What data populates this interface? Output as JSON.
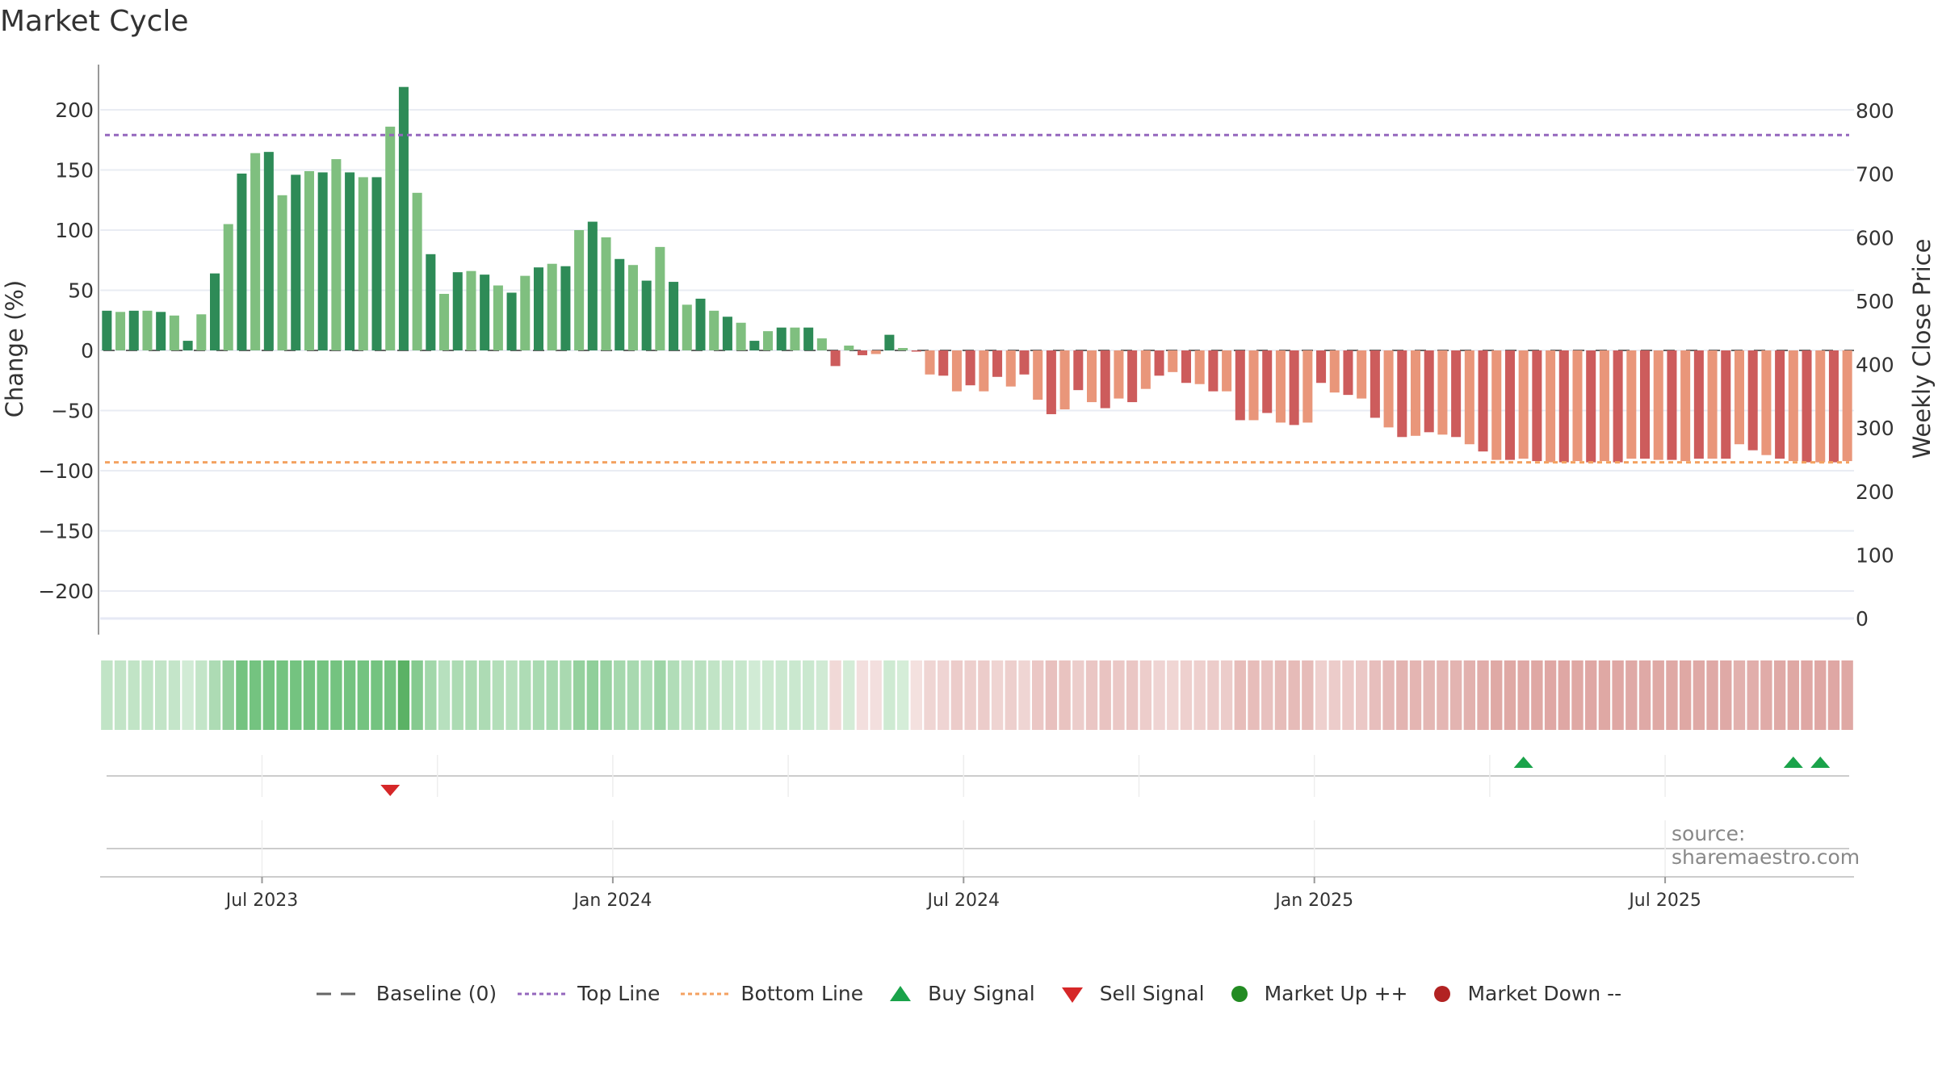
{
  "title": "Market Cycle",
  "source": "source: sharemaestro.com",
  "legend": {
    "baseline": "Baseline (0)",
    "top": "Top Line",
    "bottom": "Bottom Line",
    "buy": "Buy Signal",
    "sell": "Sell Signal",
    "up": "Market Up ++",
    "down": "Market Down --"
  },
  "colors": {
    "bar_dark_green": "#2e8b57",
    "bar_light_green": "#7fbf7f",
    "bar_dark_red": "#cd5c5c",
    "bar_light_red": "#e9967a",
    "top_line": "#9467bd",
    "bottom_line": "#f4a261",
    "buy": "#1aa34a",
    "sell": "#d62728",
    "market_up": "#228b22",
    "market_down": "#b22222"
  },
  "chart_data": {
    "type": "bar",
    "title": "Market Cycle",
    "ylabel": "Change (%)",
    "ylabel_right": "Weekly Close Price",
    "ylim": [
      -225,
      240
    ],
    "ylim_right": [
      0,
      850
    ],
    "yticks": [
      200,
      150,
      100,
      50,
      0,
      -50,
      -100,
      -150,
      -200
    ],
    "yticks_right": [
      800,
      700,
      600,
      500,
      400,
      300,
      200,
      100,
      0
    ],
    "ytick_labels": [
      "200",
      "150",
      "100",
      "50",
      "0",
      "−50",
      "−100",
      "−150",
      "−200"
    ],
    "yticks_right_labels": [
      "800",
      "700",
      "600",
      "500",
      "400",
      "300",
      "200",
      "100",
      "0"
    ],
    "xticks": [
      {
        "label": "Jul 2023",
        "week": 12
      },
      {
        "label": "Jan 2024",
        "week": 38
      },
      {
        "label": "Jul 2024",
        "week": 64
      },
      {
        "label": "Jan 2025",
        "week": 90
      },
      {
        "label": "Jul 2025",
        "week": 116
      }
    ],
    "top_line": 179,
    "bottom_line": -93,
    "baseline": 0,
    "values": [
      33,
      32,
      33,
      33,
      32,
      29,
      8,
      30,
      64,
      105,
      147,
      164,
      165,
      129,
      146,
      149,
      148,
      159,
      148,
      144,
      144,
      186,
      219,
      131,
      80,
      47,
      65,
      66,
      63,
      54,
      48,
      62,
      69,
      72,
      70,
      100,
      107,
      94,
      76,
      71,
      58,
      86,
      57,
      38,
      43,
      33,
      28,
      23,
      8,
      16,
      19,
      19,
      19,
      10,
      -13,
      4,
      -4,
      -3,
      13,
      2,
      -1,
      -20,
      -21,
      -34,
      -29,
      -34,
      -22,
      -30,
      -20,
      -41,
      -53,
      -49,
      -33,
      -43,
      -48,
      -40,
      -43,
      -32,
      -21,
      -18,
      -27,
      -28,
      -34,
      -34,
      -58,
      -58,
      -52,
      -60,
      -62,
      -60,
      -27,
      -35,
      -37,
      -40,
      -56,
      -64,
      -72,
      -71,
      -68,
      -70,
      -72,
      -78,
      -84,
      -91,
      -91,
      -90,
      -92,
      -93,
      -93,
      -92,
      -93,
      -92,
      -93,
      -90,
      -90,
      -91,
      -91,
      -92,
      -90,
      -90,
      -90,
      -78,
      -83,
      -87,
      -90,
      -92,
      -93,
      -93,
      -93,
      -92
    ],
    "buy_signals_weeks": [
      105,
      125,
      127
    ],
    "sell_signals_weeks": [
      21
    ],
    "strip_weeks_dark": [
      10,
      11,
      12,
      13,
      14,
      15,
      16,
      17,
      18,
      19,
      20,
      21,
      22
    ]
  }
}
